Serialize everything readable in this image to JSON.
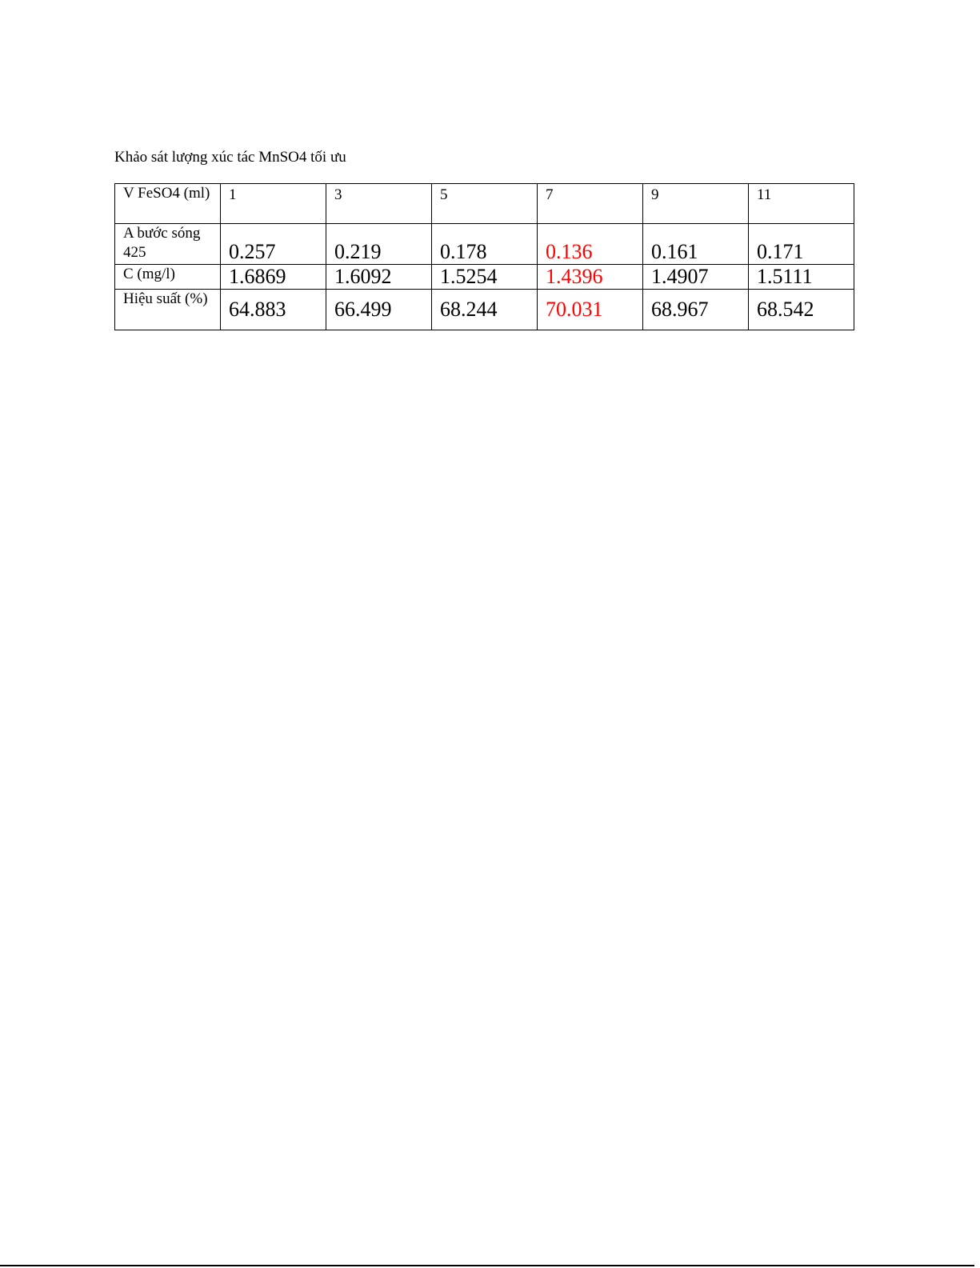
{
  "title": "Khảo sát lượng xúc tác MnSO4 tối ưu",
  "highlight_color": "#ff0000",
  "table": {
    "rows": [
      {
        "label": "V FeSO4 (ml)",
        "values": [
          "1",
          "3",
          "5",
          "7",
          "9",
          "11"
        ]
      },
      {
        "label": "A bước sóng 425",
        "values": [
          "0.257",
          "0.219",
          "0.178",
          "0.136",
          "0.161",
          "0.171"
        ]
      },
      {
        "label": "C (mg/l)",
        "values": [
          "1.6869",
          "1.6092",
          "1.5254",
          "1.4396",
          "1.4907",
          "1.5111"
        ]
      },
      {
        "label": "Hiệu suất (%)",
        "values": [
          "64.883",
          "66.499",
          "68.244",
          "70.031",
          "68.967",
          "68.542"
        ]
      }
    ],
    "highlighted_column": 3
  }
}
